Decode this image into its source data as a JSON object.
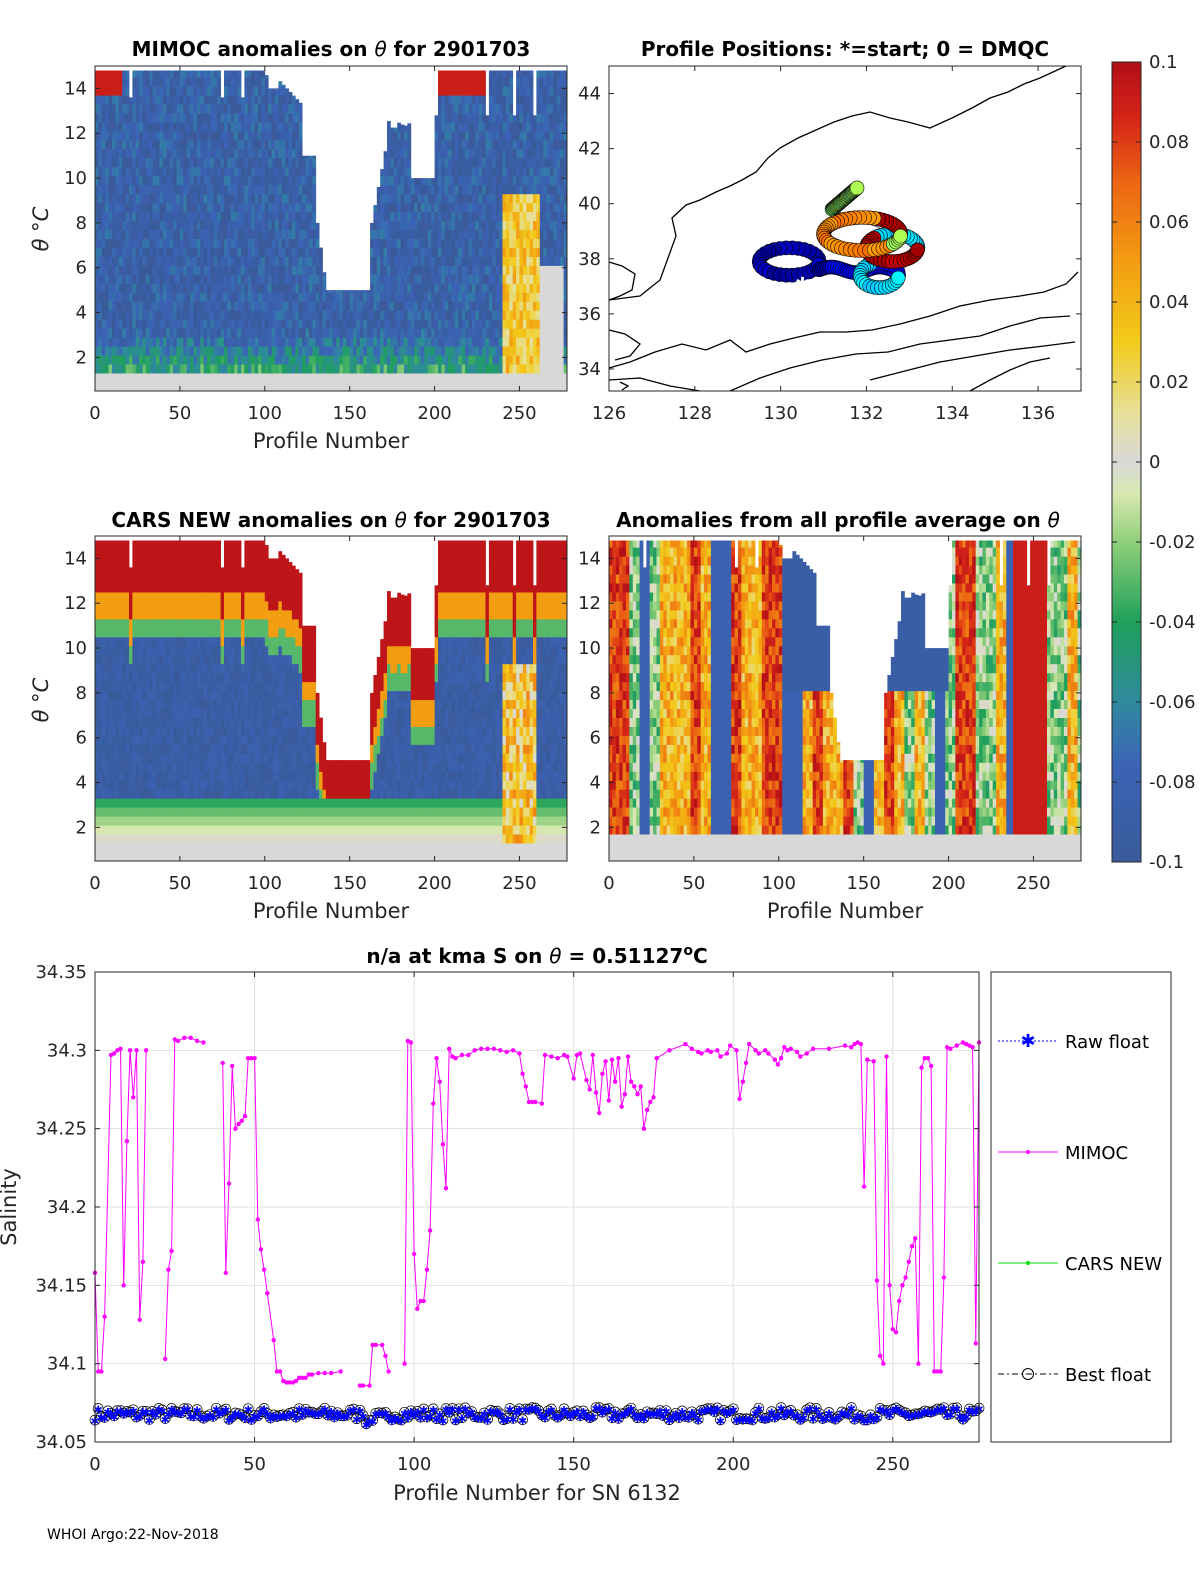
{
  "footer": "WHOI Argo:22-Nov-2018",
  "colorbar": {
    "ticks": [
      "0.1",
      "0.08",
      "0.06",
      "0.04",
      "0.02",
      "0",
      "-0.02",
      "-0.04",
      "-0.06",
      "-0.08",
      "-0.1"
    ],
    "range": [
      -0.1,
      0.1
    ]
  },
  "chart_data": [
    {
      "type": "heatmap",
      "title_parts": [
        "MIMOC anomalies on ",
        "θ",
        "  for 2901703"
      ],
      "xlabel": "Profile Number",
      "ylabel": "θ °C",
      "xticks": [
        "0",
        "50",
        "100",
        "150",
        "200",
        "250"
      ],
      "yticks": [
        "2",
        "4",
        "6",
        "8",
        "10",
        "12",
        "14"
      ],
      "xlim": [
        0,
        278
      ],
      "ylim": [
        0.5,
        15
      ]
    },
    {
      "type": "scatter",
      "title": "Profile Positions: *=start; 0 = DMQC",
      "xticks": [
        "126",
        "128",
        "130",
        "132",
        "134",
        "136"
      ],
      "yticks": [
        "34",
        "36",
        "38",
        "40",
        "42",
        "44"
      ],
      "xlim": [
        126,
        137
      ],
      "ylim": [
        33.2,
        45
      ]
    },
    {
      "type": "heatmap",
      "title_parts": [
        "CARS NEW anomalies on ",
        "θ",
        " for 2901703"
      ],
      "xlabel": "Profile Number",
      "ylabel": "θ °C",
      "xticks": [
        "0",
        "50",
        "100",
        "150",
        "200",
        "250"
      ],
      "yticks": [
        "2",
        "4",
        "6",
        "8",
        "10",
        "12",
        "14"
      ],
      "xlim": [
        0,
        278
      ],
      "ylim": [
        0.5,
        15
      ]
    },
    {
      "type": "heatmap",
      "title_parts": [
        "Anomalies from all profile average on ",
        "θ"
      ],
      "xlabel": "Profile Number",
      "xticks": [
        "0",
        "50",
        "100",
        "150",
        "200",
        "250"
      ],
      "yticks": [
        "2",
        "4",
        "6",
        "8",
        "10",
        "12",
        "14"
      ],
      "xlim": [
        0,
        278
      ],
      "ylim": [
        0.5,
        15
      ]
    },
    {
      "type": "line",
      "title_parts": [
        "n/a at kma S on ",
        "θ",
        " = 0.51127",
        "o",
        "C"
      ],
      "xlabel": "Profile Number for SN 6132",
      "ylabel": "Salinity",
      "xticks": [
        "0",
        "50",
        "100",
        "150",
        "200",
        "250"
      ],
      "yticks": [
        "34.05",
        "34.1",
        "34.15",
        "34.2",
        "34.25",
        "34.3",
        "34.35"
      ],
      "xlim": [
        0,
        277
      ],
      "ylim": [
        34.05,
        34.35
      ],
      "legend": [
        "Raw float",
        "MIMOC",
        "CARS NEW",
        "Best float"
      ],
      "series": [
        {
          "name": "MIMOC",
          "color": "#ff00ff",
          "segments": [
            [
              [
                0,
                34.158
              ],
              [
                1,
                34.095
              ],
              [
                2,
                34.095
              ],
              [
                3,
                34.13
              ],
              [
                5,
                34.297
              ],
              [
                6,
                34.298
              ],
              [
                7,
                34.3
              ],
              [
                8,
                34.301
              ],
              [
                9,
                34.15
              ],
              [
                10,
                34.242
              ],
              [
                11,
                34.3
              ],
              [
                12,
                34.27
              ],
              [
                13,
                34.3
              ],
              [
                14,
                34.128
              ],
              [
                15,
                34.165
              ],
              [
                16,
                34.3
              ]
            ],
            [
              [
                22,
                34.103
              ],
              [
                23,
                34.16
              ],
              [
                24,
                34.172
              ],
              [
                25,
                34.307
              ],
              [
                26,
                34.306
              ],
              [
                28,
                34.308
              ],
              [
                30,
                34.308
              ],
              [
                32,
                34.306
              ],
              [
                34,
                34.305
              ]
            ],
            [
              [
                40,
                34.292
              ],
              [
                41,
                34.158
              ],
              [
                42,
                34.215
              ],
              [
                43,
                34.29
              ],
              [
                44,
                34.25
              ],
              [
                45,
                34.253
              ],
              [
                46,
                34.255
              ],
              [
                47,
                34.258
              ],
              [
                48,
                34.295
              ],
              [
                49,
                34.295
              ],
              [
                50,
                34.295
              ],
              [
                51,
                34.192
              ],
              [
                52,
                34.173
              ],
              [
                53,
                34.16
              ],
              [
                54,
                34.145
              ],
              [
                56,
                34.115
              ],
              [
                57,
                34.095
              ],
              [
                58,
                34.095
              ],
              [
                59,
                34.089
              ],
              [
                60,
                34.088
              ],
              [
                61,
                34.088
              ],
              [
                62,
                34.088
              ],
              [
                63,
                34.089
              ],
              [
                64,
                34.091
              ],
              [
                65,
                34.091
              ],
              [
                66,
                34.091
              ],
              [
                67,
                34.093
              ],
              [
                68,
                34.093
              ],
              [
                70,
                34.094
              ],
              [
                72,
                34.094
              ],
              [
                74,
                34.094
              ],
              [
                77,
                34.095
              ]
            ],
            [
              [
                83,
                34.086
              ],
              [
                84,
                34.086
              ],
              [
                86,
                34.086
              ],
              [
                87,
                34.112
              ],
              [
                88,
                34.112
              ],
              [
                90,
                34.112
              ],
              [
                91,
                34.105
              ],
              [
                92,
                34.095
              ]
            ],
            [
              [
                97,
                34.1
              ],
              [
                98,
                34.306
              ],
              [
                99,
                34.305
              ],
              [
                100,
                34.17
              ],
              [
                101,
                34.135
              ],
              [
                102,
                34.14
              ],
              [
                103,
                34.14
              ],
              [
                104,
                34.16
              ],
              [
                105,
                34.185
              ],
              [
                106,
                34.266
              ],
              [
                107,
                34.295
              ],
              [
                108,
                34.28
              ],
              [
                109,
                34.24
              ],
              [
                110,
                34.212
              ],
              [
                111,
                34.301
              ],
              [
                112,
                34.296
              ],
              [
                113,
                34.295
              ],
              [
                115,
                34.297
              ],
              [
                117,
                34.297
              ],
              [
                119,
                34.3
              ],
              [
                121,
                34.301
              ],
              [
                123,
                34.301
              ],
              [
                125,
                34.301
              ],
              [
                127,
                34.3
              ],
              [
                129,
                34.299
              ],
              [
                131,
                34.3
              ],
              [
                133,
                34.298
              ],
              [
                134,
                34.285
              ],
              [
                135,
                34.277
              ],
              [
                136,
                34.267
              ],
              [
                137,
                34.267
              ],
              [
                138,
                34.267
              ],
              [
                140,
                34.266
              ],
              [
                141,
                34.297
              ],
              [
                143,
                34.296
              ],
              [
                145,
                34.295
              ],
              [
                147,
                34.297
              ],
              [
                148,
                34.296
              ],
              [
                150,
                34.282
              ],
              [
                151,
                34.297
              ],
              [
                152,
                34.298
              ],
              [
                154,
                34.281
              ],
              [
                155,
                34.275
              ],
              [
                156,
                34.297
              ],
              [
                157,
                34.273
              ],
              [
                158,
                34.26
              ],
              [
                159,
                34.285
              ],
              [
                160,
                34.293
              ],
              [
                161,
                34.268
              ],
              [
                162,
                34.294
              ],
              [
                163,
                34.28
              ],
              [
                164,
                34.295
              ],
              [
                165,
                34.264
              ],
              [
                166,
                34.272
              ],
              [
                167,
                34.296
              ],
              [
                168,
                34.28
              ],
              [
                169,
                34.277
              ],
              [
                170,
                34.272
              ],
              [
                171,
                34.277
              ],
              [
                172,
                34.25
              ],
              [
                173,
                34.262
              ],
              [
                174,
                34.267
              ],
              [
                175,
                34.27
              ],
              [
                176,
                34.295
              ],
              [
                180,
                34.3
              ],
              [
                185,
                34.304
              ],
              [
                187,
                34.301
              ],
              [
                189,
                34.299
              ],
              [
                190,
                34.298
              ],
              [
                192,
                34.3
              ],
              [
                193,
                34.299
              ],
              [
                195,
                34.3
              ],
              [
                196,
                34.296
              ],
              [
                198,
                34.298
              ],
              [
                199,
                34.303
              ],
              [
                201,
                34.3
              ],
              [
                202,
                34.269
              ],
              [
                203,
                34.28
              ],
              [
                204,
                34.292
              ],
              [
                205,
                34.304
              ],
              [
                207,
                34.3
              ],
              [
                208,
                34.298
              ],
              [
                210,
                34.3
              ],
              [
                211,
                34.298
              ],
              [
                213,
                34.294
              ],
              [
                214,
                34.291
              ],
              [
                215,
                34.295
              ],
              [
                216,
                34.302
              ],
              [
                217,
                34.3
              ],
              [
                218,
                34.301
              ],
              [
                220,
                34.299
              ],
              [
                221,
                34.296
              ],
              [
                223,
                34.298
              ],
              [
                225,
                34.301
              ],
              [
                230,
                34.301
              ],
              [
                235,
                34.303
              ],
              [
                237,
                34.302
              ],
              [
                238,
                34.304
              ],
              [
                239,
                34.305
              ],
              [
                240,
                34.304
              ],
              [
                241,
                34.213
              ],
              [
                242,
                34.294
              ],
              [
                244,
                34.293
              ],
              [
                245,
                34.153
              ],
              [
                246,
                34.105
              ],
              [
                247,
                34.1
              ],
              [
                248,
                34.296
              ],
              [
                249,
                34.15
              ],
              [
                250,
                34.122
              ],
              [
                251,
                34.12
              ],
              [
                252,
                34.14
              ],
              [
                253,
                34.15
              ],
              [
                254,
                34.155
              ],
              [
                255,
                34.165
              ],
              [
                256,
                34.175
              ],
              [
                257,
                34.18
              ],
              [
                258,
                34.1
              ],
              [
                259,
                34.289
              ],
              [
                260,
                34.295
              ],
              [
                261,
                34.295
              ],
              [
                262,
                34.29
              ],
              [
                263,
                34.095
              ],
              [
                264,
                34.095
              ],
              [
                265,
                34.095
              ],
              [
                266,
                34.155
              ],
              [
                267,
                34.302
              ],
              [
                268,
                34.301
              ],
              [
                270,
                34.303
              ],
              [
                272,
                34.305
              ],
              [
                273,
                34.304
              ],
              [
                274,
                34.303
              ],
              [
                275,
                34.302
              ],
              [
                276,
                34.113
              ],
              [
                277,
                34.305
              ]
            ]
          ]
        },
        {
          "name": "Raw float / CARS NEW / Best float",
          "color": "#0000ff",
          "value_range": [
            34.064,
            34.072
          ]
        }
      ]
    }
  ]
}
